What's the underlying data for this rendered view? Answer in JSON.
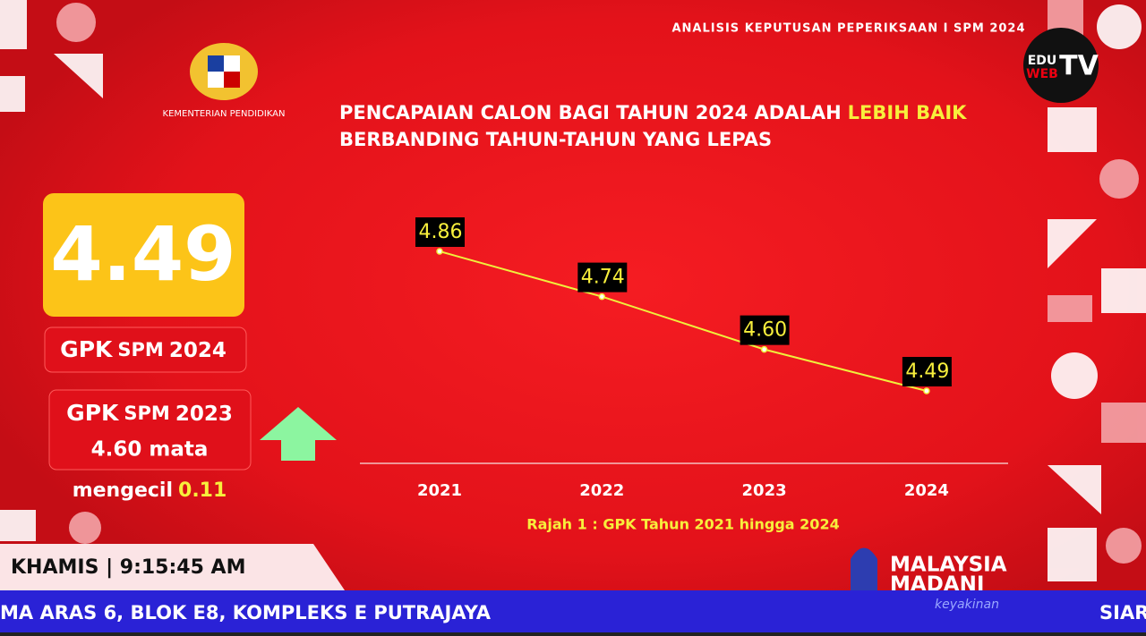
{
  "header": {
    "broadcast_title": "ANALISIS KEPUTUSAN PEPERIKSAAN I SPM 2024",
    "ministry": "KEMENTERIAN PENDIDIKAN",
    "channel_logo": [
      "EDU",
      "WEB",
      "TV"
    ]
  },
  "chart_data": {
    "type": "line",
    "title": "PENCAPAIAN CALON BAGI TAHUN 2024 ADALAH",
    "title_highlight": "LEBIH BAIK",
    "subtitle": "BERBANDING TAHUN-TAHUN YANG LEPAS",
    "caption": "Rajah 1 : GPK Tahun 2021 hingga 2024",
    "categories": [
      "2021",
      "2022",
      "2023",
      "2024"
    ],
    "values": [
      4.86,
      4.74,
      4.6,
      4.49
    ],
    "value_labels": [
      "4.86",
      "4.74",
      "4.60",
      "4.49"
    ],
    "color": "#f0f03c"
  },
  "left_panel": {
    "big_value": "4.49",
    "current_label": [
      "GPK",
      "SPM",
      "2024"
    ],
    "previous_label": [
      "GPK",
      "SPM",
      "2023"
    ],
    "previous_value": "4.60 mata",
    "change_word": "mengecil",
    "change_value": "0.11"
  },
  "footer": {
    "day_time": "KHAMIS | 9:15:45 AM",
    "ticker": "MA ARAS 6, BLOK E8, KOMPLEKS E PUTRAJAYA",
    "ticker_next": "SIAR",
    "brand": [
      "MALAYSIA",
      "MADANI"
    ],
    "brand_tagline": "keyakinan"
  }
}
